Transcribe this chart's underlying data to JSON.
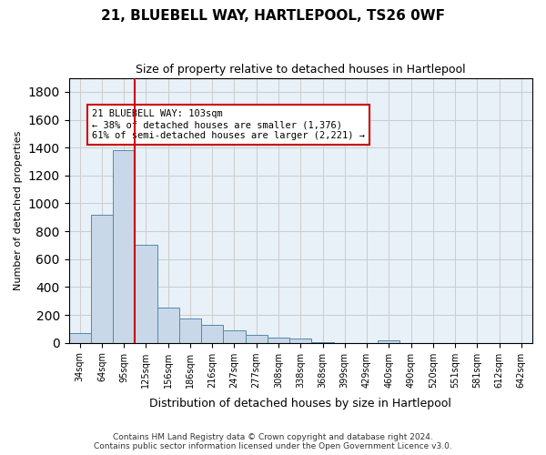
{
  "title": "21, BLUEBELL WAY, HARTLEPOOL, TS26 0WF",
  "subtitle": "Size of property relative to detached houses in Hartlepool",
  "xlabel": "Distribution of detached houses by size in Hartlepool",
  "ylabel": "Number of detached properties",
  "footer_line1": "Contains HM Land Registry data © Crown copyright and database right 2024.",
  "footer_line2": "Contains public sector information licensed under the Open Government Licence v3.0.",
  "property_label": "21 BLUEBELL WAY: 103sqm",
  "annotation_line1": "← 38% of detached houses are smaller (1,376)",
  "annotation_line2": "61% of semi-detached houses are larger (2,221) →",
  "property_size": 103,
  "categories": [
    "34sqm",
    "64sqm",
    "95sqm",
    "125sqm",
    "156sqm",
    "186sqm",
    "216sqm",
    "247sqm",
    "277sqm",
    "308sqm",
    "338sqm",
    "368sqm",
    "399sqm",
    "429sqm",
    "460sqm",
    "490sqm",
    "520sqm",
    "551sqm",
    "581sqm",
    "612sqm",
    "642sqm"
  ],
  "values": [
    70,
    920,
    1380,
    700,
    250,
    175,
    130,
    90,
    55,
    35,
    30,
    5,
    0,
    0,
    20,
    0,
    0,
    0,
    0,
    0,
    0
  ],
  "bar_color": "#c8d8e8",
  "bar_edge_color": "#5588aa",
  "red_line_color": "#cc0000",
  "annotation_box_edge": "#cc0000",
  "background_color": "#ffffff",
  "axes_bg_color": "#e8f0f8",
  "grid_color": "#cccccc",
  "ylim": [
    0,
    1900
  ],
  "yticks": [
    0,
    200,
    400,
    600,
    800,
    1000,
    1200,
    1400,
    1600,
    1800
  ],
  "red_line_x": 2.5
}
